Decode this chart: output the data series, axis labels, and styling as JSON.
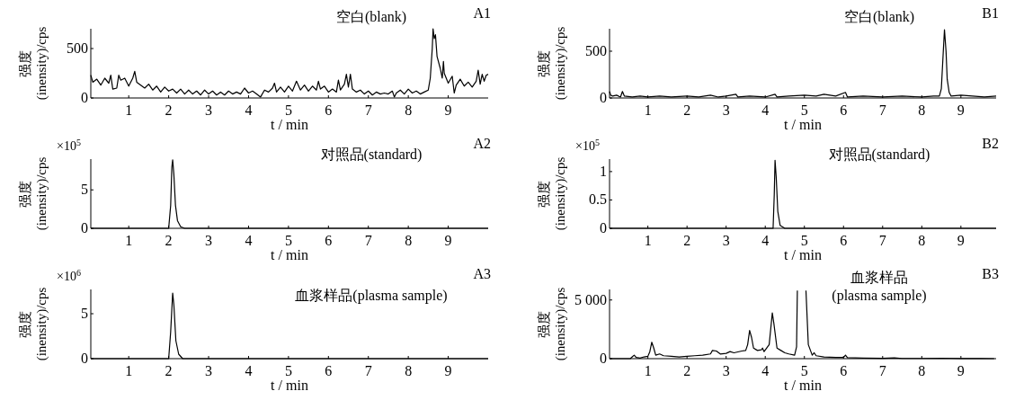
{
  "chart_data": [
    {
      "type": "line",
      "title": "A1",
      "xlabel": "t / min",
      "ylabel": "强度\n(inensity)/cps",
      "annotations": [
        "空白(blank)"
      ],
      "xlim": [
        0.05,
        10
      ],
      "xticks": [
        1,
        2,
        3,
        4,
        5,
        6,
        7,
        8,
        9
      ],
      "ylim": [
        0,
        700
      ],
      "yticks": [
        0,
        500
      ],
      "series": [
        {
          "color": "#000000",
          "x": [
            0.05,
            0.1,
            0.2,
            0.3,
            0.4,
            0.5,
            0.55,
            0.6,
            0.7,
            0.75,
            0.8,
            0.9,
            1.0,
            1.1,
            1.15,
            1.2,
            1.3,
            1.4,
            1.5,
            1.6,
            1.7,
            1.8,
            1.9,
            2.0,
            2.1,
            2.2,
            2.3,
            2.4,
            2.5,
            2.6,
            2.7,
            2.8,
            2.9,
            3.0,
            3.1,
            3.2,
            3.3,
            3.4,
            3.5,
            3.6,
            3.7,
            3.8,
            3.9,
            4.0,
            4.1,
            4.2,
            4.3,
            4.4,
            4.5,
            4.6,
            4.65,
            4.7,
            4.8,
            4.9,
            5.0,
            5.1,
            5.2,
            5.3,
            5.4,
            5.5,
            5.6,
            5.7,
            5.75,
            5.8,
            5.9,
            6.0,
            6.1,
            6.2,
            6.25,
            6.3,
            6.4,
            6.45,
            6.5,
            6.55,
            6.6,
            6.7,
            6.8,
            6.9,
            7.0,
            7.1,
            7.2,
            7.3,
            7.4,
            7.5,
            7.6,
            7.65,
            7.7,
            7.8,
            7.9,
            8.0,
            8.1,
            8.2,
            8.3,
            8.4,
            8.5,
            8.55,
            8.6,
            8.62,
            8.65,
            8.68,
            8.72,
            8.8,
            8.85,
            8.88,
            8.9,
            9.0,
            9.1,
            9.15,
            9.2,
            9.3,
            9.4,
            9.5,
            9.6,
            9.7,
            9.75,
            9.8,
            9.85,
            9.9,
            9.95,
            10
          ],
          "values": [
            230,
            160,
            190,
            130,
            200,
            150,
            230,
            90,
            100,
            230,
            180,
            200,
            120,
            200,
            270,
            160,
            130,
            100,
            140,
            80,
            120,
            60,
            110,
            70,
            90,
            50,
            90,
            40,
            80,
            40,
            70,
            30,
            80,
            40,
            70,
            30,
            60,
            30,
            70,
            40,
            60,
            40,
            100,
            50,
            70,
            40,
            10,
            80,
            60,
            100,
            150,
            60,
            110,
            60,
            120,
            70,
            170,
            80,
            130,
            70,
            120,
            80,
            170,
            90,
            120,
            60,
            90,
            60,
            180,
            80,
            140,
            240,
            110,
            240,
            90,
            60,
            80,
            40,
            70,
            30,
            60,
            40,
            50,
            40,
            70,
            10,
            50,
            80,
            40,
            90,
            50,
            70,
            40,
            60,
            80,
            200,
            500,
            700,
            600,
            640,
            420,
            300,
            200,
            370,
            250,
            150,
            220,
            50,
            130,
            190,
            120,
            160,
            110,
            170,
            280,
            140,
            240,
            170,
            230,
            240
          ]
        }
      ]
    },
    {
      "type": "line",
      "title": "B1",
      "xlabel": "t / min",
      "ylabel": "强度\n(inensity)/cps",
      "annotations": [
        "空白(blank)"
      ],
      "xlim": [
        0.02,
        9.9
      ],
      "xticks": [
        1,
        2,
        3,
        4,
        5,
        6,
        7,
        8,
        9
      ],
      "ylim": [
        0,
        740
      ],
      "yticks": [
        0,
        500
      ],
      "series": [
        {
          "color": "#000000",
          "x": [
            0.02,
            0.05,
            0.1,
            0.2,
            0.3,
            0.35,
            0.4,
            0.6,
            0.8,
            1.0,
            1.3,
            1.6,
            2.0,
            2.3,
            2.6,
            2.8,
            3.0,
            3.25,
            3.3,
            3.6,
            4.0,
            4.25,
            4.3,
            4.6,
            5.0,
            5.3,
            5.5,
            5.8,
            6.05,
            6.1,
            6.5,
            7.0,
            7.5,
            8.0,
            8.3,
            8.45,
            8.5,
            8.55,
            8.58,
            8.62,
            8.65,
            8.7,
            8.75,
            9.0,
            9.3,
            9.6,
            9.9
          ],
          "values": [
            70,
            30,
            20,
            30,
            10,
            70,
            20,
            10,
            20,
            10,
            20,
            10,
            20,
            10,
            30,
            10,
            20,
            40,
            10,
            20,
            10,
            40,
            10,
            20,
            30,
            20,
            40,
            20,
            60,
            10,
            20,
            10,
            20,
            10,
            20,
            20,
            100,
            500,
            730,
            500,
            200,
            60,
            20,
            30,
            20,
            10,
            20
          ]
        }
      ]
    },
    {
      "type": "line",
      "title": "A2",
      "xlabel": "t / min",
      "ylabel": "强度\n(inensity)/cps",
      "annotations": [
        "×10$^{5}$",
        "对照品(standard)"
      ],
      "xlim": [
        0.05,
        10
      ],
      "xticks": [
        1,
        2,
        3,
        4,
        5,
        6,
        7,
        8,
        9
      ],
      "ylim": [
        0,
        9
      ],
      "yticks": [
        0,
        5
      ],
      "series": [
        {
          "color": "#000000",
          "x": [
            0.05,
            2.0,
            2.05,
            2.08,
            2.1,
            2.13,
            2.17,
            2.22,
            2.3,
            2.4,
            10
          ],
          "values": [
            0,
            0,
            3,
            8,
            8.9,
            7,
            3,
            1,
            0.2,
            0,
            0
          ]
        }
      ]
    },
    {
      "type": "line",
      "title": "B2",
      "xlabel": "t / min",
      "ylabel": "强度\n(inensity)/cps",
      "annotations": [
        "×10$^{5}$",
        "对照品(standard)"
      ],
      "xlim": [
        0.02,
        9.9
      ],
      "xticks": [
        1,
        2,
        3,
        4,
        5,
        6,
        7,
        8,
        9
      ],
      "ylim": [
        0,
        1.22
      ],
      "yticks": [
        0,
        0.5,
        1
      ],
      "series": [
        {
          "color": "#000000",
          "x": [
            0.02,
            4.2,
            4.23,
            4.25,
            4.28,
            4.32,
            4.38,
            4.5,
            9.9
          ],
          "values": [
            0,
            0,
            0.6,
            1.2,
            0.9,
            0.3,
            0.05,
            0,
            0
          ]
        }
      ]
    },
    {
      "type": "line",
      "title": "A3",
      "xlabel": "t / min",
      "ylabel": "强度\n(inensity)/cps",
      "annotations": [
        "×10$^{6}$",
        "血浆样品(plasma sample)"
      ],
      "xlim": [
        0.05,
        10
      ],
      "xticks": [
        1,
        2,
        3,
        4,
        5,
        6,
        7,
        8,
        9
      ],
      "ylim": [
        0,
        7.7
      ],
      "yticks": [
        0,
        5
      ],
      "series": [
        {
          "color": "#000000",
          "x": [
            0.05,
            2.0,
            2.05,
            2.1,
            2.13,
            2.18,
            2.25,
            2.35,
            10
          ],
          "values": [
            0,
            0,
            3,
            7.3,
            6,
            2,
            0.5,
            0,
            0
          ]
        }
      ]
    },
    {
      "type": "line",
      "title": "B3",
      "xlabel": "t / min",
      "ylabel": "强度\n(inensity)/cps",
      "annotations": [
        "血浆样品\n(plasma sample)"
      ],
      "xlim": [
        0.02,
        9.9
      ],
      "xticks": [
        1,
        2,
        3,
        4,
        5,
        6,
        7,
        8,
        9
      ],
      "ylim": [
        0,
        5900
      ],
      "yticks": [
        0,
        {
          "value": 5000,
          "label": "5 000"
        }
      ],
      "series": [
        {
          "color": "#000000",
          "x": [
            0.02,
            0.55,
            0.6,
            0.65,
            0.7,
            0.8,
            0.9,
            1.0,
            1.05,
            1.1,
            1.15,
            1.2,
            1.3,
            1.4,
            1.6,
            1.8,
            2.0,
            2.2,
            2.4,
            2.6,
            2.65,
            2.75,
            2.85,
            3.0,
            3.1,
            3.2,
            3.4,
            3.5,
            3.55,
            3.6,
            3.65,
            3.7,
            3.8,
            3.9,
            3.93,
            3.97,
            4.1,
            4.18,
            4.22,
            4.3,
            4.4,
            4.5,
            4.6,
            4.75,
            4.8,
            4.82,
            4.93,
            5.04,
            5.1,
            5.2,
            5.25,
            5.3,
            5.5,
            5.8,
            6.0,
            6.05,
            6.1,
            6.5,
            7.0,
            7.3,
            7.5,
            8.0,
            8.5,
            9.0,
            9.5,
            9.85
          ],
          "values": [
            0,
            0,
            150,
            300,
            100,
            50,
            150,
            200,
            600,
            1400,
            900,
            300,
            400,
            250,
            200,
            150,
            200,
            250,
            300,
            400,
            700,
            650,
            400,
            450,
            600,
            500,
            650,
            700,
            1200,
            2400,
            1800,
            900,
            700,
            750,
            900,
            600,
            1200,
            3900,
            3000,
            900,
            700,
            500,
            400,
            300,
            1000,
            5800,
            null,
            5800,
            1200,
            300,
            500,
            250,
            150,
            100,
            100,
            300,
            80,
            50,
            30,
            60,
            20,
            20,
            40,
            10,
            10,
            0
          ]
        }
      ]
    }
  ]
}
